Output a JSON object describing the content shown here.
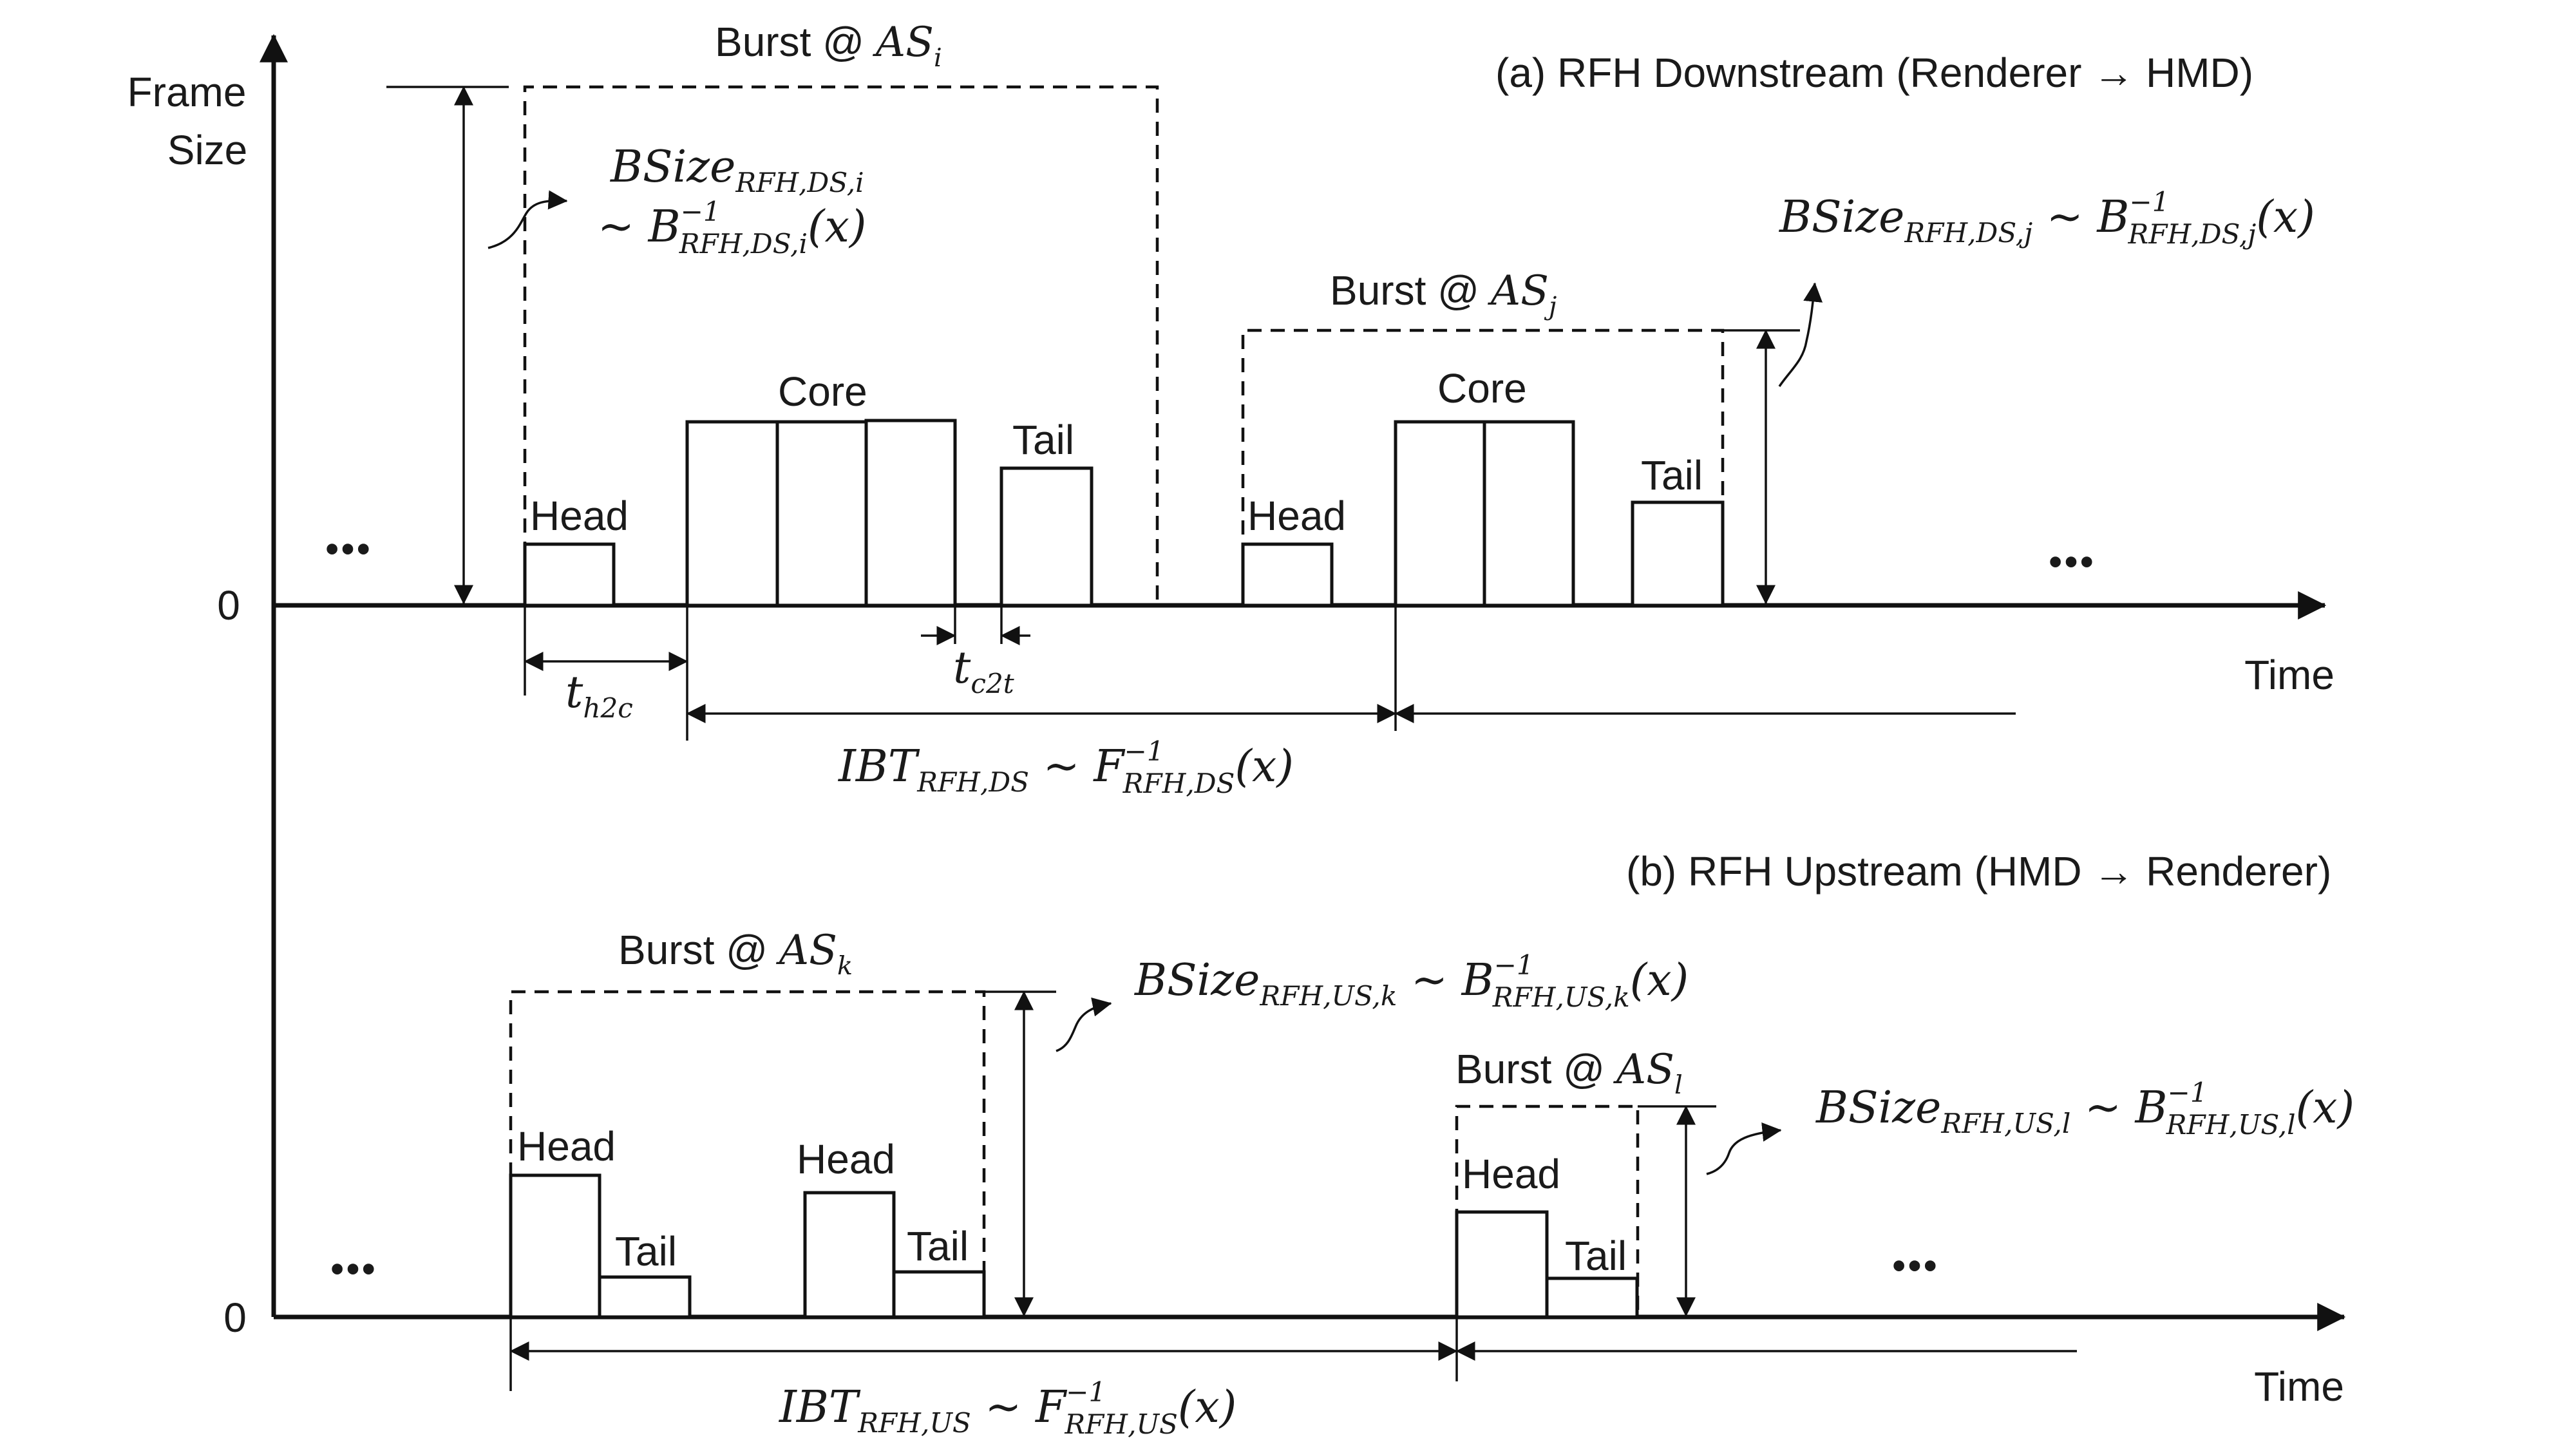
{
  "axis": {
    "y_label_line1": "Frame",
    "y_label_line2": "Size",
    "zero_top": "0",
    "zero_bottom": "0",
    "time_top": "Time",
    "time_bottom": "Time",
    "ellipsis": "•••"
  },
  "panel_a": {
    "title": "(a) RFH Downstream (Renderer → HMD)",
    "burst_i": {
      "prefix": "Burst @ ",
      "var": "AS",
      "sub": "i"
    },
    "burst_j": {
      "prefix": "Burst @ ",
      "var": "AS",
      "sub": "j"
    },
    "labels": {
      "head": "Head",
      "core": "Core",
      "tail": "Tail"
    },
    "bsize_i": {
      "line1_var": "BSize",
      "line1_sub": "RFH,DS,i",
      "line2_op": "~ ",
      "line2_var": "B",
      "line2_sup": "−1",
      "line2_sub": "RFH,DS,i",
      "line2_arg": "(x)"
    },
    "bsize_j": {
      "var": "BSize",
      "sub": "RFH,DS,j",
      "op": " ~ ",
      "var2": "B",
      "sup": "−1",
      "sub2": "RFH,DS,j",
      "arg": "(x)"
    },
    "t_h2c": {
      "var": "t",
      "sub": "h2c"
    },
    "t_c2t": {
      "var": "t",
      "sub": "c2t"
    },
    "ibt": {
      "var": "IBT",
      "sub": "RFH,DS",
      "op": " ~ ",
      "var2": "F",
      "sup": "−1",
      "sub2": "RFH,DS",
      "arg": "(x)"
    }
  },
  "panel_b": {
    "title": "(b) RFH Upstream (HMD → Renderer)",
    "burst_k": {
      "prefix": "Burst @ ",
      "var": "AS",
      "sub": "k"
    },
    "burst_l": {
      "prefix": "Burst @ ",
      "var": "AS",
      "sub": "l"
    },
    "labels": {
      "head": "Head",
      "tail": "Tail"
    },
    "bsize_k": {
      "var": "BSize",
      "sub": "RFH,US,k",
      "op": " ~ ",
      "var2": "B",
      "sup": "−1",
      "sub2": "RFH,US,k",
      "arg": "(x)"
    },
    "bsize_l": {
      "var": "BSize",
      "sub": "RFH,US,l",
      "op": " ~ ",
      "var2": "B",
      "sup": "−1",
      "sub2": "RFH,US,l",
      "arg": "(x)"
    },
    "ibt": {
      "var": "IBT",
      "sub": "RFH,US",
      "op": " ~ ",
      "var2": "F",
      "sup": "−1",
      "sub2": "RFH,US",
      "arg": "(x)"
    }
  }
}
